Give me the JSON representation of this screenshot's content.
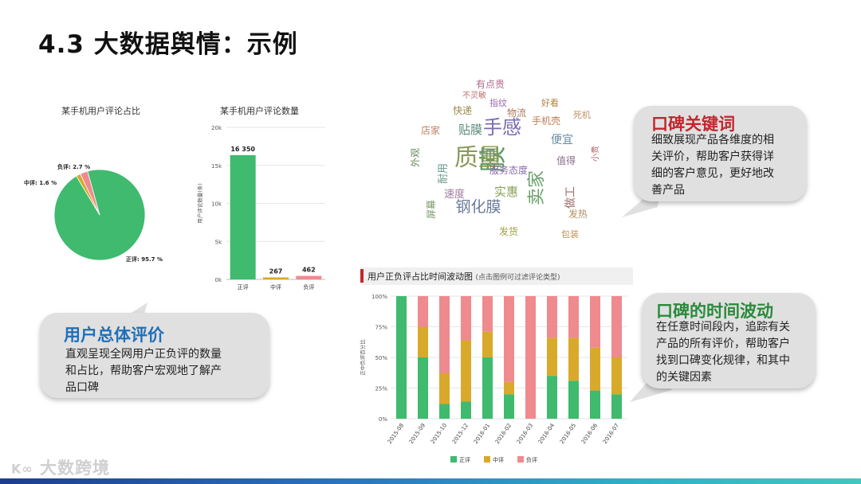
{
  "slide": {
    "title": "4.3 大数据舆情：示例"
  },
  "brand": {
    "text": "大数跨境"
  },
  "colors": {
    "positive": "#3fba6e",
    "neutral": "#d9a92b",
    "negative": "#ef8a8e",
    "accent_red": "#c0272d",
    "accent_blue": "#1f6fb8"
  },
  "bubbles": {
    "overall": {
      "title": "用户总体评价",
      "lines": [
        "直观呈现全网用户正负评的数量",
        "和占比，帮助客户宏观地了解产",
        "品口碑"
      ]
    },
    "keywords": {
      "title": "口碑关键词",
      "lines": [
        "细致展现产品各维度的相",
        "关评价，帮助客户获得详",
        "细的客户意见，更好地改",
        "善产品"
      ]
    },
    "timeline": {
      "title": "口碑的时间波动",
      "lines": [
        "在任意时间段内，追踪有关",
        "产品的所有评价，帮助客户",
        "找到口碑变化规律，和其中",
        "的关键因素"
      ]
    }
  },
  "chart_data": [
    {
      "type": "pie",
      "title": "某手机用户评论占比",
      "slices": [
        {
          "label": "正评: 95.7 %",
          "value": 95.7
        },
        {
          "label": "中评: 1.6 %",
          "value": 1.6
        },
        {
          "label": "负评: 2.7 %",
          "value": 2.7
        }
      ]
    },
    {
      "type": "bar",
      "title": "某手机用户评论数量",
      "ylabel": "用户评论数量(条)",
      "categories": [
        "正评",
        "中评",
        "负评"
      ],
      "values": [
        16350,
        267,
        462
      ],
      "value_labels": [
        "16 350",
        "267",
        "462"
      ],
      "ylim": [
        0,
        20000
      ],
      "yticks": [
        "0k",
        "5k",
        "10k",
        "15k",
        "20k"
      ],
      "grid": true
    },
    {
      "type": "bar",
      "stacked": true,
      "title": "用户正负评占比时间波动图",
      "subtitle": "(点击图例可过滤评论类型)",
      "ylabel": "正中负评百分比",
      "categories": [
        "2015-08",
        "2015-09",
        "2015-10",
        "2015-12",
        "2016-01",
        "2016-02",
        "2016-03",
        "2016-04",
        "2016-05",
        "2016-06",
        "2016-07"
      ],
      "series": [
        {
          "name": "正评",
          "values": [
            100,
            50,
            12,
            14,
            50,
            20,
            0,
            35,
            31,
            23,
            20
          ]
        },
        {
          "name": "中评",
          "values": [
            0,
            25,
            25,
            50,
            21,
            10,
            0,
            31,
            35,
            35,
            30
          ]
        },
        {
          "name": "负评",
          "values": [
            0,
            25,
            63,
            36,
            29,
            70,
            100,
            34,
            34,
            42,
            50
          ]
        }
      ],
      "ylim": [
        0,
        100
      ],
      "yticks": [
        "0%",
        "25%",
        "50%",
        "75%",
        "100%"
      ],
      "legend": "bottom",
      "grid": true
    },
    {
      "type": "wordcloud",
      "words": [
        {
          "t": "膜",
          "c": "#5a9a6a"
        },
        {
          "t": "质量",
          "c": "#8a9a5a"
        },
        {
          "t": "手感",
          "c": "#7a6ab0"
        },
        {
          "t": "贴膜",
          "c": "#5a8a7a"
        },
        {
          "t": "钢化膜",
          "c": "#6a7a9a"
        },
        {
          "t": "物流",
          "c": "#b07a5a"
        },
        {
          "t": "有点贵",
          "c": "#b06a8a"
        },
        {
          "t": "服务态度",
          "c": "#8a6ab0"
        },
        {
          "t": "快递",
          "c": "#9a8a4a"
        },
        {
          "t": "手机壳",
          "c": "#c07a50"
        },
        {
          "t": "发货",
          "c": "#a0a040"
        },
        {
          "t": "卖家",
          "c": "#6aa06a"
        },
        {
          "t": "好看",
          "c": "#b08040"
        },
        {
          "t": "便宜",
          "c": "#6a8aa0"
        },
        {
          "t": "值得",
          "c": "#8a6a8a"
        },
        {
          "t": "做工",
          "c": "#a06a6a"
        },
        {
          "t": "店家",
          "c": "#c08060"
        },
        {
          "t": "耐用",
          "c": "#6a9a8a"
        },
        {
          "t": "发热",
          "c": "#b09060"
        },
        {
          "t": "速度",
          "c": "#a07aa0"
        },
        {
          "t": "外观",
          "c": "#6a8a5a"
        },
        {
          "t": "包装",
          "c": "#c09050"
        },
        {
          "t": "实惠",
          "c": "#8aa05a"
        },
        {
          "t": "不灵敏",
          "c": "#c07070"
        },
        {
          "t": "指纹",
          "c": "#9a6ab0"
        },
        {
          "t": "死机",
          "c": "#c09060"
        },
        {
          "t": "小贵",
          "c": "#b06060"
        },
        {
          "t": "屏幕",
          "c": "#7a9a6a"
        }
      ]
    }
  ]
}
